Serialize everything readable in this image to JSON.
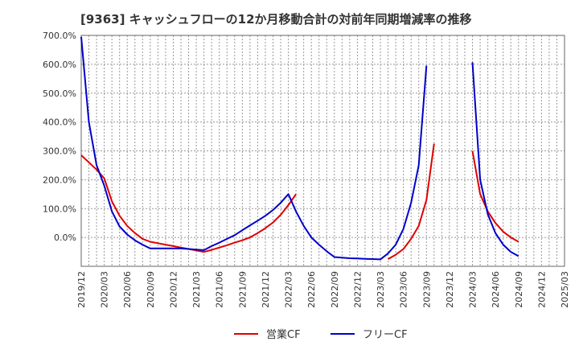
{
  "chart_data": {
    "type": "line",
    "title": "[9363]  キャッシュフローの12か月移動合計の対前年同期増減率の推移",
    "xlabel": "",
    "ylabel": "",
    "ylim": [
      -100,
      700
    ],
    "yticks": [
      0,
      100,
      200,
      300,
      400,
      500,
      600,
      700
    ],
    "ytick_labels": [
      "0.0%",
      "100.0%",
      "200.0%",
      "300.0%",
      "400.0%",
      "500.0%",
      "600.0%",
      "700.0%"
    ],
    "x_ticks": [
      "2019/12",
      "2020/03",
      "2020/06",
      "2020/09",
      "2020/12",
      "2021/03",
      "2021/06",
      "2021/09",
      "2021/12",
      "2022/03",
      "2022/06",
      "2022/09",
      "2022/12",
      "2023/03",
      "2023/06",
      "2023/09",
      "2023/12",
      "2024/03",
      "2024/06",
      "2024/09",
      "2024/12",
      "2025/03"
    ],
    "x": [
      "2019/12",
      "2020/01",
      "2020/02",
      "2020/03",
      "2020/04",
      "2020/05",
      "2020/06",
      "2020/07",
      "2020/08",
      "2020/09",
      "2020/10",
      "2020/11",
      "2020/12",
      "2021/01",
      "2021/02",
      "2021/03",
      "2021/04",
      "2021/05",
      "2021/06",
      "2021/07",
      "2021/08",
      "2021/09",
      "2021/10",
      "2021/11",
      "2021/12",
      "2022/01",
      "2022/02",
      "2022/03",
      "2022/04",
      "2022/05",
      "2022/06",
      "2022/07",
      "2022/08",
      "2022/09",
      "2022/10",
      "2022/11",
      "2022/12",
      "2023/01",
      "2023/02",
      "2023/03",
      "2023/04",
      "2023/05",
      "2023/06",
      "2023/07",
      "2023/08",
      "2023/09",
      "2023/10",
      "2023/11",
      "2023/12",
      "2024/01",
      "2024/02",
      "2024/03",
      "2024/04",
      "2024/05",
      "2024/06",
      "2024/07",
      "2024/08",
      "2024/09"
    ],
    "grid": true,
    "legend_position": "bottom-center",
    "series": [
      {
        "name": "営業CF",
        "color": "#e00000",
        "values": [
          285,
          260,
          235,
          205,
          125,
          75,
          40,
          15,
          -5,
          -15,
          -20,
          -25,
          -30,
          -35,
          -40,
          -45,
          -50,
          -43,
          -35,
          -27,
          -18,
          -10,
          0,
          15,
          32,
          52,
          78,
          112,
          150,
          null,
          null,
          null,
          null,
          null,
          null,
          null,
          null,
          null,
          null,
          null,
          -75,
          -60,
          -40,
          -5,
          40,
          130,
          325,
          null,
          null,
          null,
          null,
          300,
          150,
          90,
          50,
          20,
          0,
          -15
        ]
      },
      {
        "name": "フリーCF",
        "color": "#0000cc",
        "values": [
          695,
          400,
          250,
          180,
          90,
          38,
          10,
          -10,
          -25,
          -38,
          -38,
          -38,
          -38,
          -38,
          -40,
          -42,
          -44,
          -30,
          -18,
          -5,
          8,
          25,
          42,
          58,
          75,
          95,
          120,
          150,
          90,
          40,
          0,
          -25,
          -48,
          -68,
          -70,
          -72,
          -73,
          -74,
          -75,
          -76,
          -55,
          -25,
          30,
          120,
          250,
          595,
          null,
          null,
          null,
          null,
          null,
          607,
          200,
          80,
          15,
          -25,
          -50,
          -65
        ]
      }
    ]
  }
}
